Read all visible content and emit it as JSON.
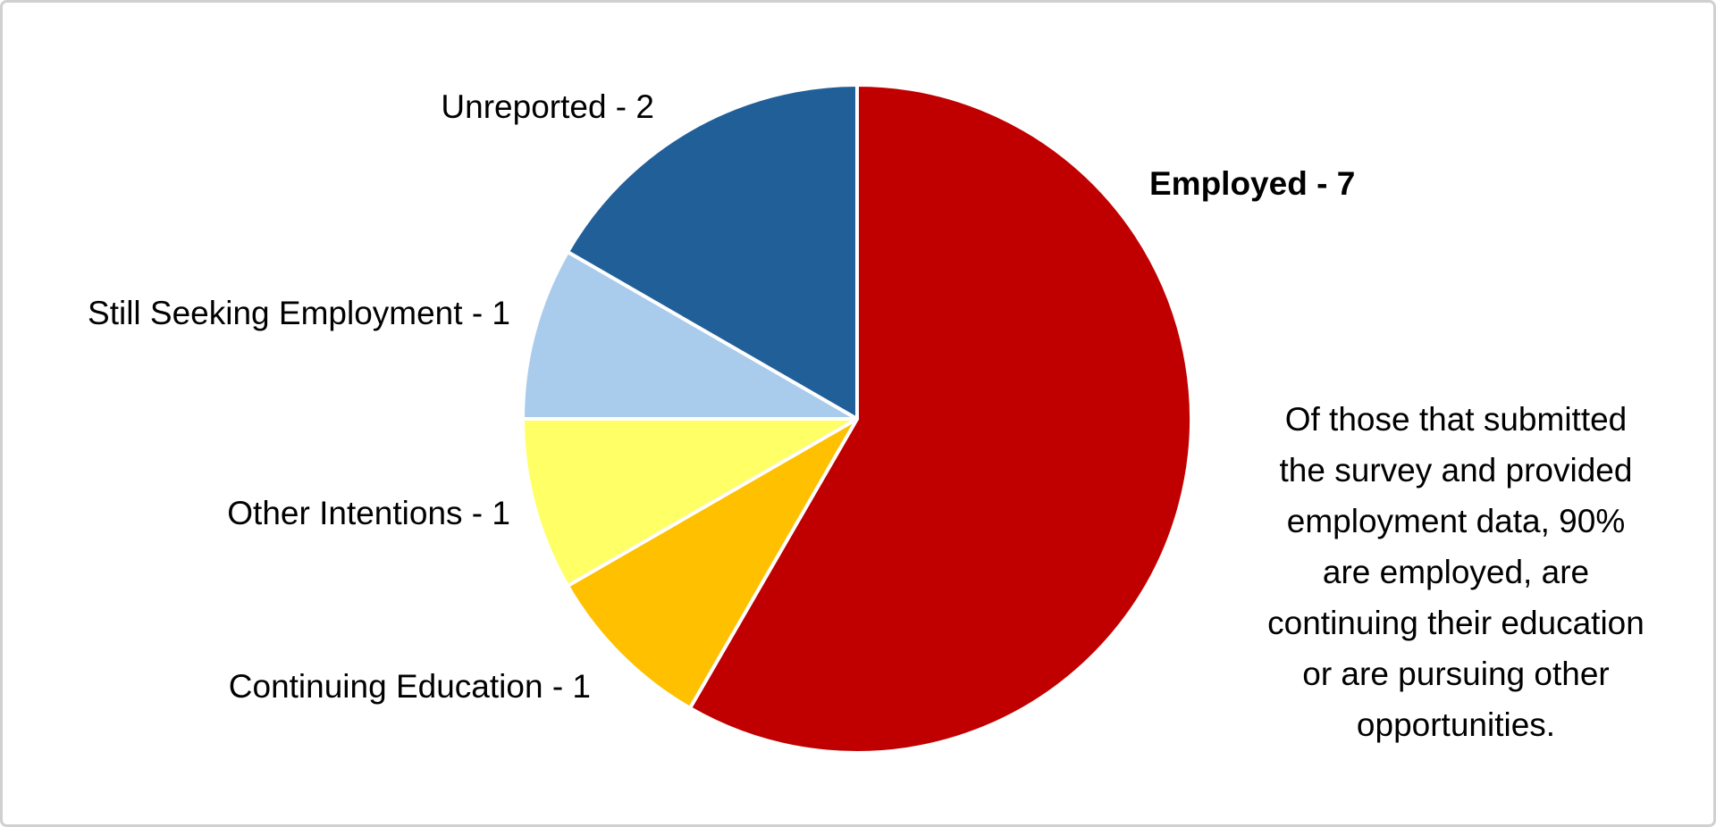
{
  "chart_data": {
    "type": "pie",
    "values": [
      7,
      1,
      1,
      1,
      2
    ],
    "value_labels": [
      "Employed - 7",
      "Continuing Education - 1",
      "Other Intentions - 1",
      "Still Seeking Employment - 1",
      "Unreported - 2"
    ],
    "colors": [
      "#c00000",
      "#ffc000",
      "#ffff66",
      "#a9cbec",
      "#215f99"
    ],
    "annotation": [
      "Of those that submitted",
      "the survey and provided",
      "employment data, 90%",
      "are employed, are",
      "continuing their education",
      "or are pursuing other",
      "opportunities."
    ]
  }
}
